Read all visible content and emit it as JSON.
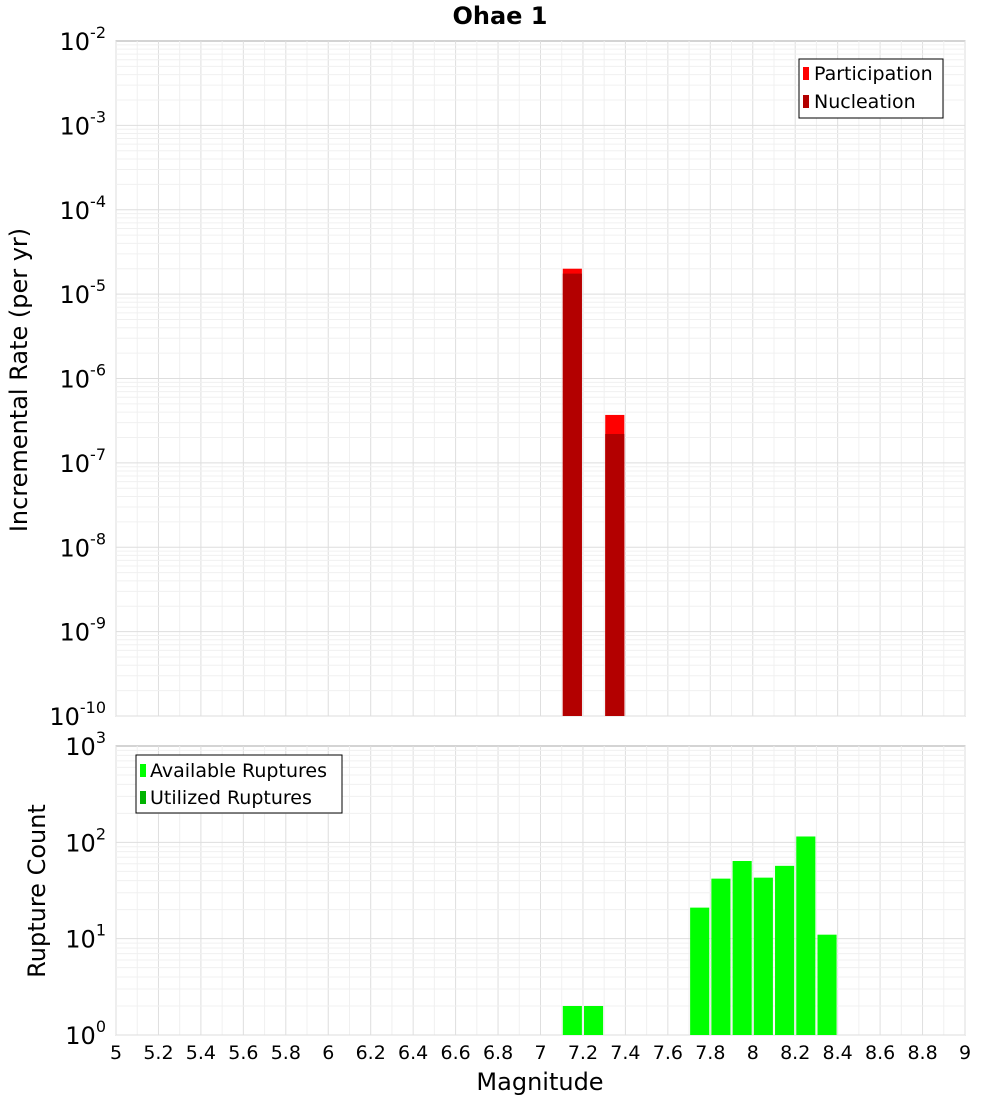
{
  "chart_data": [
    {
      "type": "bar",
      "title": "Ohae 1",
      "ylabel": "Incremental Rate (per yr)",
      "xlabel": "",
      "yscale": "log",
      "ylim_exponents": [
        -10,
        -2
      ],
      "xlim": [
        5,
        9
      ],
      "bar_width": 0.09,
      "grid": true,
      "legend_position": "top-right",
      "legend": [
        "Participation",
        "Nucleation"
      ],
      "series": [
        {
          "name": "Participation",
          "color": "#ff0000",
          "x": [
            7.15,
            7.35
          ],
          "values": [
            2e-05,
            3.7e-07
          ]
        },
        {
          "name": "Nucleation",
          "color": "#b30000",
          "x": [
            7.15,
            7.35
          ],
          "values": [
            1.75e-05,
            2.2e-07
          ]
        }
      ]
    },
    {
      "type": "bar",
      "title": "",
      "ylabel": "Rupture Count",
      "xlabel": "Magnitude",
      "yscale": "log",
      "ylim_exponents": [
        0,
        3
      ],
      "xlim": [
        5,
        9
      ],
      "bar_width": 0.09,
      "grid": true,
      "legend_position": "top-left",
      "legend": [
        "Available Ruptures",
        "Utilized Ruptures"
      ],
      "x_ticks": [
        "5",
        "5.2",
        "5.4",
        "5.6",
        "5.8",
        "6",
        "6.2",
        "6.4",
        "6.6",
        "6.8",
        "7",
        "7.2",
        "7.4",
        "7.6",
        "7.8",
        "8",
        "8.2",
        "8.4",
        "8.6",
        "8.8",
        "9"
      ],
      "series": [
        {
          "name": "Available Ruptures",
          "color": "#00ff00",
          "x": [
            7.15,
            7.25,
            7.55,
            7.65,
            7.75,
            7.85,
            7.95,
            8.05,
            8.15,
            8.25,
            8.35
          ],
          "values": [
            2,
            2,
            1,
            1,
            21,
            42,
            64,
            43,
            57,
            115,
            11
          ]
        },
        {
          "name": "Utilized Ruptures",
          "color": "#00b300",
          "x": [
            7.15,
            7.35
          ],
          "values": [
            1,
            1
          ]
        }
      ]
    }
  ]
}
